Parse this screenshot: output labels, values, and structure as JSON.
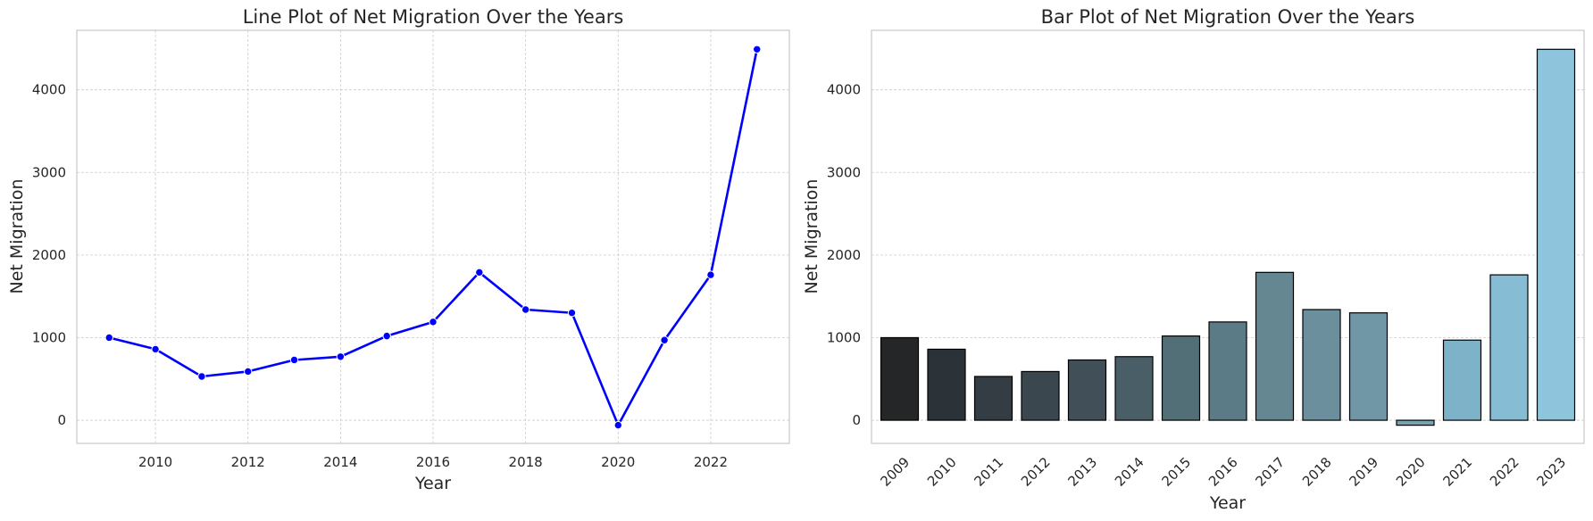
{
  "chart_data": [
    {
      "type": "line",
      "title": "Line Plot of Net Migration Over the Years",
      "xlabel": "Year",
      "ylabel": "Net Migration",
      "x": [
        2009,
        2010,
        2011,
        2012,
        2013,
        2014,
        2015,
        2016,
        2017,
        2018,
        2019,
        2020,
        2021,
        2022,
        2023
      ],
      "y": [
        1000,
        860,
        530,
        590,
        730,
        770,
        1020,
        1190,
        1790,
        1340,
        1300,
        -60,
        970,
        1760,
        4490
      ],
      "xticks": [
        "2010",
        "2012",
        "2014",
        "2016",
        "2018",
        "2020",
        "2022"
      ],
      "yticks": [
        "0",
        "1000",
        "2000",
        "3000",
        "4000"
      ],
      "xlim": [
        2008.3,
        2023.7
      ],
      "ylim": [
        -280,
        4720
      ],
      "line_color": "#0000ff",
      "grid": true
    },
    {
      "type": "bar",
      "title": "Bar Plot of Net Migration Over the Years",
      "xlabel": "Year",
      "ylabel": "Net Migration",
      "categories": [
        "2009",
        "2010",
        "2011",
        "2012",
        "2013",
        "2014",
        "2015",
        "2016",
        "2017",
        "2018",
        "2019",
        "2020",
        "2021",
        "2022",
        "2023"
      ],
      "values": [
        1000,
        860,
        530,
        590,
        730,
        770,
        1020,
        1190,
        1790,
        1340,
        1300,
        -60,
        970,
        1760,
        4490
      ],
      "yticks": [
        "0",
        "1000",
        "2000",
        "3000",
        "4000"
      ],
      "ylim": [
        -280,
        4720
      ],
      "colors": [
        "#252627",
        "#2c3338",
        "#333d43",
        "#3a474e",
        "#414f58",
        "#495e66",
        "#526f78",
        "#5b7b86",
        "#648792",
        "#6b8f9d",
        "#7097a6",
        "#77a4b3",
        "#7eb2c8",
        "#86bcd4",
        "#8ec5dd"
      ],
      "bar_edge_color": "#000000",
      "grid": true
    }
  ]
}
